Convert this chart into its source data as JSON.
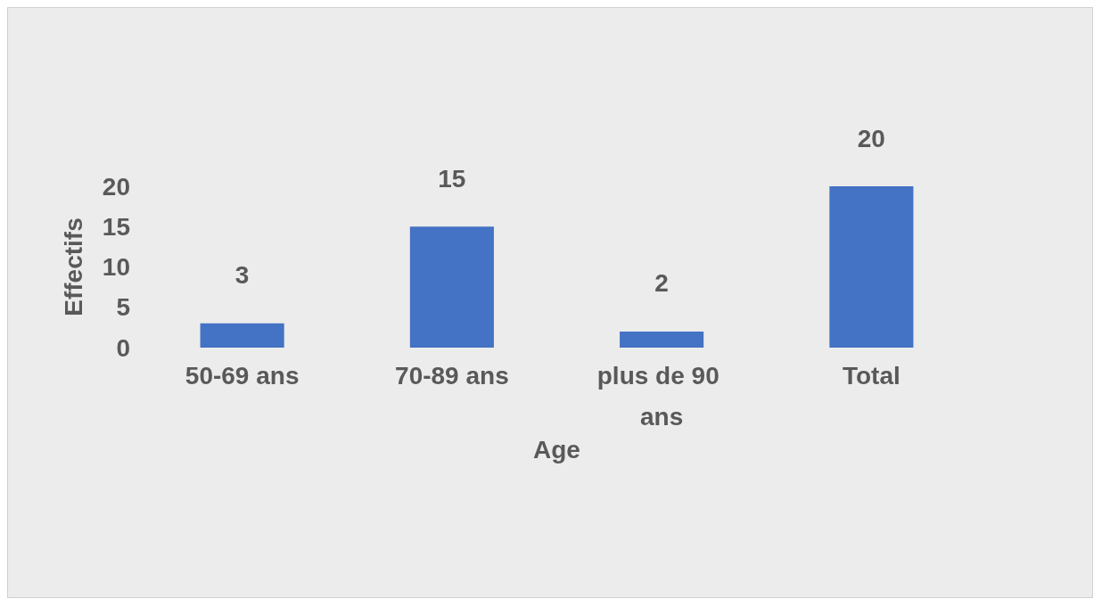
{
  "chart_data": {
    "type": "bar",
    "xlabel": "Age",
    "ylabel": "Effectifs",
    "categories": [
      "50-69 ans",
      "70-89 ans",
      "plus de 90 ans",
      "Total"
    ],
    "values": [
      3,
      15,
      2,
      20
    ],
    "color": "#4472c4",
    "data_labels": true,
    "ylim": [
      0,
      20
    ],
    "yticks": [
      0,
      5,
      10,
      15,
      20
    ],
    "grid": false
  }
}
